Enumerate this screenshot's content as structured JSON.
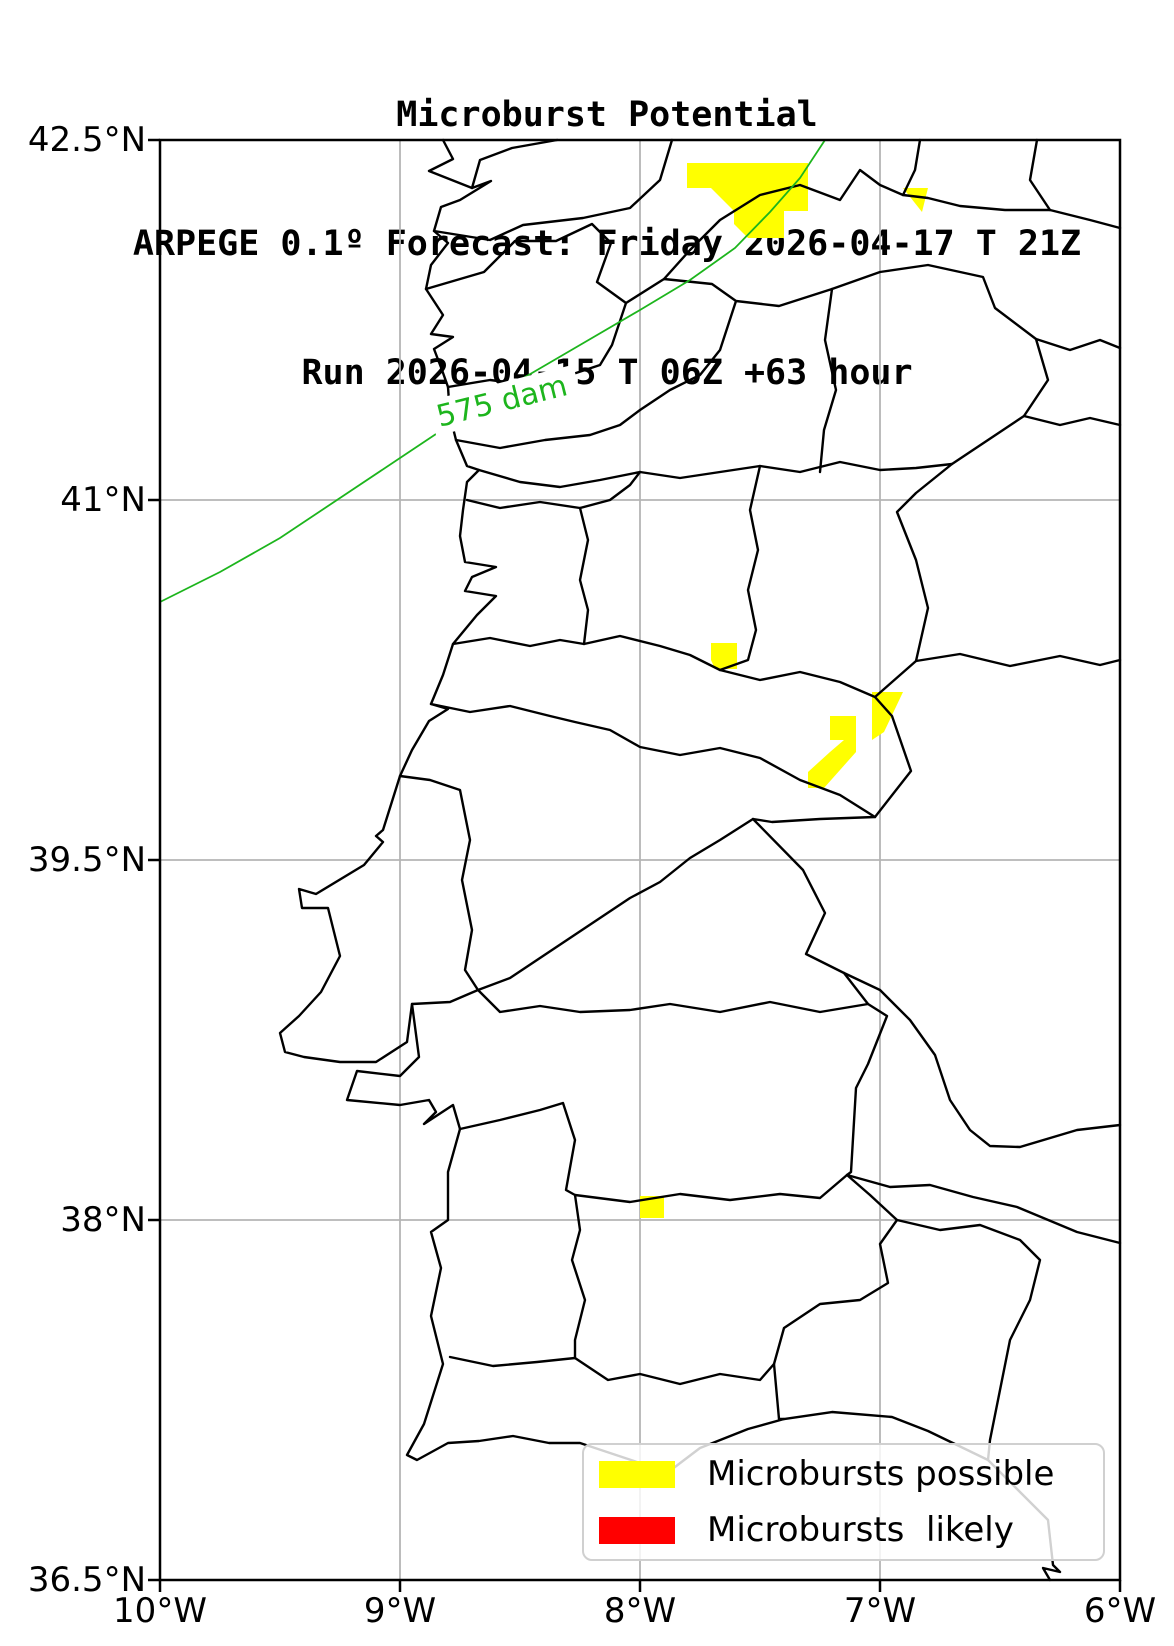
{
  "title": {
    "line1": "Microburst Potential",
    "line2": "ARPEGE 0.1º Forecast: Friday 2026-04-17 T 21Z",
    "line3": "Run 2026-04-15 T 06Z +63 hour"
  },
  "axes": {
    "y_ticks": [
      "42.5°N",
      "41°N",
      "39.5°N",
      "38°N",
      "36.5°N"
    ],
    "x_ticks": [
      "10°W",
      "9°W",
      "8°W",
      "7°W",
      "6°W"
    ],
    "lon_range": [
      -10,
      -6
    ],
    "lat_range": [
      36.5,
      42.5
    ],
    "grid": true
  },
  "contour": {
    "label": "575 dam",
    "value_dam": 575,
    "color": "#1db51d",
    "points": [
      [
        0,
        462
      ],
      [
        60,
        432
      ],
      [
        120,
        398
      ],
      [
        177,
        360
      ],
      [
        240,
        318
      ],
      [
        300,
        278
      ],
      [
        360,
        240
      ],
      [
        420,
        205
      ],
      [
        480,
        170
      ],
      [
        530,
        140
      ],
      [
        575,
        108
      ],
      [
        610,
        72
      ],
      [
        640,
        38
      ],
      [
        665,
        0
      ]
    ]
  },
  "map": {
    "boundary_color": "#000000",
    "grid_color": "#b4b4b4",
    "possible_color": "#ffff00",
    "likely_color": "#ff0000",
    "possible_regions": [
      [
        [
          527,
          23
        ],
        [
          648,
          23
        ],
        [
          648,
          71
        ],
        [
          624,
          71
        ],
        [
          624,
          98
        ],
        [
          588,
          98
        ],
        [
          574,
          84
        ],
        [
          574,
          71
        ],
        [
          551,
          48
        ],
        [
          527,
          48
        ]
      ],
      [
        [
          743,
          48
        ],
        [
          768,
          48
        ],
        [
          762,
          72
        ]
      ],
      [
        [
          551,
          503
        ],
        [
          577,
          503
        ],
        [
          577,
          529
        ],
        [
          555,
          529
        ],
        [
          551,
          520
        ]
      ],
      [
        [
          712,
          552
        ],
        [
          743,
          552
        ],
        [
          724,
          592
        ],
        [
          712,
          600
        ]
      ],
      [
        [
          670,
          576
        ],
        [
          696,
          576
        ],
        [
          696,
          600
        ],
        [
          670,
          600
        ]
      ],
      [
        [
          684,
          600
        ],
        [
          696,
          600
        ],
        [
          696,
          612
        ],
        [
          664,
          648
        ],
        [
          648,
          648
        ],
        [
          648,
          632
        ],
        [
          670,
          612
        ]
      ],
      [
        [
          480,
          1056
        ],
        [
          504,
          1056
        ],
        [
          504,
          1078
        ],
        [
          480,
          1078
        ]
      ]
    ],
    "likely_regions": []
  },
  "legend": {
    "items": [
      {
        "label": "Microbursts possible",
        "color": "#ffff00"
      },
      {
        "label": "Microbursts  likely",
        "color": "#ff0000"
      }
    ]
  }
}
